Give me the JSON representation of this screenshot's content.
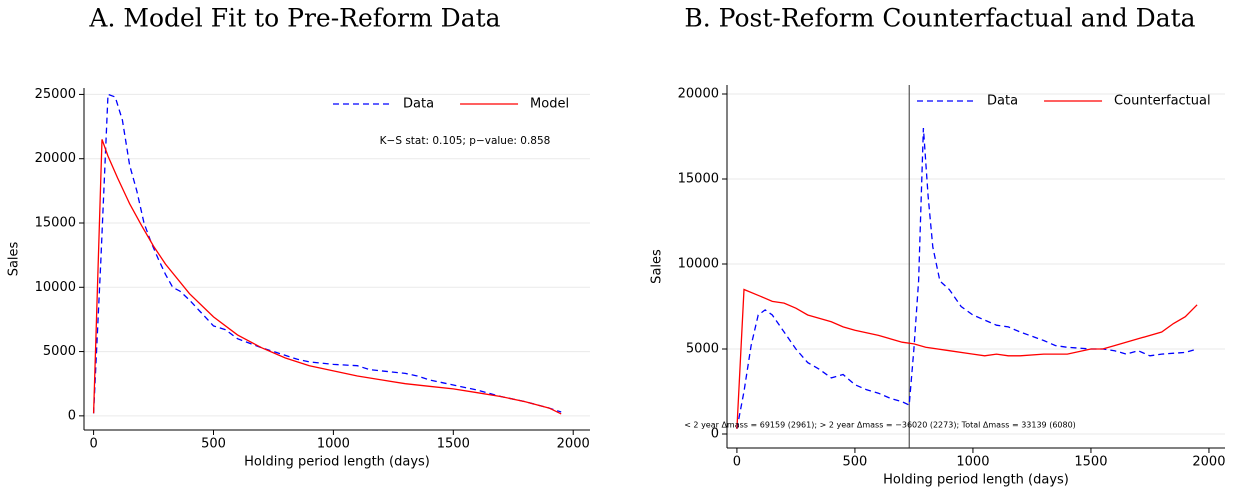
{
  "chart_data": [
    {
      "type": "line",
      "title": "A. Model Fit to Pre-Reform Data",
      "x_label": "Holding period length (days)",
      "y_label": "Sales",
      "annotation": "K−S stat: 0.105; p−value: 0.858",
      "xlim": [
        -40,
        2070
      ],
      "ylim": [
        -1100,
        25500
      ],
      "xticks": [
        0,
        500,
        1000,
        1500,
        2000
      ],
      "yticks": [
        0,
        5000,
        10000,
        15000,
        20000,
        25000
      ],
      "grid": true,
      "series": [
        {
          "name": "Data",
          "color": "#0000ff",
          "dash": true,
          "x": [
            0,
            30,
            60,
            90,
            120,
            150,
            180,
            210,
            240,
            270,
            300,
            330,
            360,
            400,
            450,
            500,
            550,
            600,
            700,
            800,
            850,
            900,
            1000,
            1100,
            1150,
            1200,
            1300,
            1350,
            1400,
            1500,
            1600,
            1700,
            1800,
            1900,
            1950
          ],
          "values": [
            200,
            12000,
            25000,
            24800,
            23000,
            19500,
            17500,
            15000,
            13500,
            12200,
            11000,
            10000,
            9700,
            9000,
            8000,
            7000,
            6700,
            6000,
            5300,
            4700,
            4400,
            4200,
            4000,
            3900,
            3600,
            3500,
            3300,
            3100,
            2800,
            2400,
            2000,
            1500,
            1100,
            600,
            300
          ]
        },
        {
          "name": "Model",
          "color": "#ff0000",
          "dash": false,
          "x": [
            0,
            35,
            60,
            100,
            150,
            200,
            250,
            300,
            400,
            500,
            600,
            700,
            800,
            900,
            1000,
            1100,
            1200,
            1300,
            1400,
            1500,
            1600,
            1700,
            1800,
            1900,
            1950
          ],
          "values": [
            200,
            21500,
            20200,
            18500,
            16500,
            14800,
            13200,
            11800,
            9500,
            7700,
            6300,
            5300,
            4500,
            3900,
            3500,
            3100,
            2800,
            2500,
            2300,
            2100,
            1800,
            1500,
            1100,
            600,
            150
          ]
        }
      ]
    },
    {
      "type": "line",
      "title": "B. Post-Reform Counterfactual and Data",
      "x_label": "Holding period length (days)",
      "y_label": "Sales",
      "annotation": "< 2 year Δmass = 69159 (2961); > 2 year Δmass =  −36020 (2273); Total Δmass = 33139 (6080)",
      "xlim": [
        -42,
        2068
      ],
      "ylim": [
        -824,
        20530
      ],
      "xticks": [
        0,
        500,
        1000,
        1500,
        2000
      ],
      "yticks": [
        0,
        5000,
        10000,
        15000,
        20000
      ],
      "grid": true,
      "vline": 730,
      "series": [
        {
          "name": "Data",
          "color": "#0000ff",
          "dash": true,
          "x": [
            0,
            30,
            60,
            90,
            120,
            150,
            200,
            250,
            300,
            350,
            400,
            450,
            500,
            550,
            600,
            650,
            700,
            730,
            750,
            770,
            790,
            810,
            830,
            860,
            900,
            950,
            1000,
            1050,
            1100,
            1150,
            1200,
            1300,
            1350,
            1400,
            1500,
            1550,
            1600,
            1650,
            1700,
            1750,
            1800,
            1900,
            1950
          ],
          "values": [
            300,
            2500,
            5200,
            7000,
            7300,
            7000,
            6000,
            5000,
            4200,
            3800,
            3300,
            3500,
            2900,
            2600,
            2400,
            2100,
            1900,
            1700,
            5000,
            9000,
            18000,
            14000,
            11000,
            9000,
            8500,
            7500,
            7000,
            6700,
            6400,
            6300,
            6000,
            5500,
            5200,
            5100,
            5000,
            5000,
            4900,
            4700,
            4900,
            4600,
            4700,
            4800,
            5000
          ]
        },
        {
          "name": "Counterfactual",
          "color": "#ff0000",
          "dash": false,
          "x": [
            0,
            30,
            100,
            150,
            200,
            250,
            300,
            350,
            400,
            450,
            500,
            600,
            700,
            750,
            800,
            900,
            1000,
            1050,
            1100,
            1150,
            1200,
            1300,
            1400,
            1500,
            1550,
            1600,
            1700,
            1800,
            1850,
            1900,
            1950
          ],
          "values": [
            300,
            8500,
            8100,
            7800,
            7700,
            7400,
            7000,
            6800,
            6600,
            6300,
            6100,
            5800,
            5400,
            5300,
            5100,
            4900,
            4700,
            4600,
            4700,
            4600,
            4600,
            4700,
            4700,
            5000,
            5000,
            5200,
            5600,
            6000,
            6500,
            6900,
            7600
          ]
        }
      ]
    }
  ]
}
